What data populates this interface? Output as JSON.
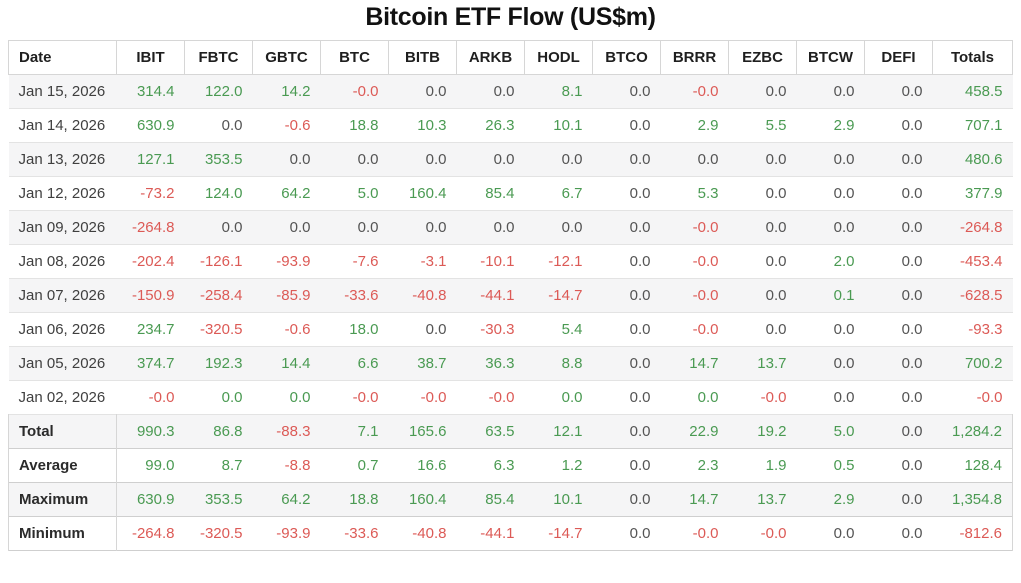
{
  "colors": {
    "positive": "#4a9a52",
    "negative": "#dc5a56",
    "zero": "#545454",
    "stripe": "#f5f5f6"
  },
  "chart_data": {
    "type": "table",
    "title": "Bitcoin ETF Flow (US$m)",
    "columns": [
      "Date",
      "IBIT",
      "FBTC",
      "GBTC",
      "BTC",
      "BITB",
      "ARKB",
      "HODL",
      "BTCO",
      "BRRR",
      "EZBC",
      "BTCW",
      "DEFI",
      "Totals"
    ],
    "rows": [
      {
        "label": "Jan 15, 2026",
        "values": [
          "314.4",
          "122.0",
          "14.2",
          "-0.0",
          "0.0",
          "0.0",
          "8.1",
          "0.0",
          "-0.0",
          "0.0",
          "0.0",
          "0.0",
          "458.5"
        ],
        "colors": [
          "pos",
          "pos",
          "pos",
          "neg",
          "zero",
          "zero",
          "pos",
          "zero",
          "neg",
          "zero",
          "zero",
          "zero",
          "pos"
        ]
      },
      {
        "label": "Jan 14, 2026",
        "values": [
          "630.9",
          "0.0",
          "-0.6",
          "18.8",
          "10.3",
          "26.3",
          "10.1",
          "0.0",
          "2.9",
          "5.5",
          "2.9",
          "0.0",
          "707.1"
        ],
        "colors": [
          "pos",
          "zero",
          "neg",
          "pos",
          "pos",
          "pos",
          "pos",
          "zero",
          "pos",
          "pos",
          "pos",
          "zero",
          "pos"
        ]
      },
      {
        "label": "Jan 13, 2026",
        "values": [
          "127.1",
          "353.5",
          "0.0",
          "0.0",
          "0.0",
          "0.0",
          "0.0",
          "0.0",
          "0.0",
          "0.0",
          "0.0",
          "0.0",
          "480.6"
        ],
        "colors": [
          "pos",
          "pos",
          "zero",
          "zero",
          "zero",
          "zero",
          "zero",
          "zero",
          "zero",
          "zero",
          "zero",
          "zero",
          "pos"
        ]
      },
      {
        "label": "Jan 12, 2026",
        "values": [
          "-73.2",
          "124.0",
          "64.2",
          "5.0",
          "160.4",
          "85.4",
          "6.7",
          "0.0",
          "5.3",
          "0.0",
          "0.0",
          "0.0",
          "377.9"
        ],
        "colors": [
          "neg",
          "pos",
          "pos",
          "pos",
          "pos",
          "pos",
          "pos",
          "zero",
          "pos",
          "zero",
          "zero",
          "zero",
          "pos"
        ]
      },
      {
        "label": "Jan 09, 2026",
        "values": [
          "-264.8",
          "0.0",
          "0.0",
          "0.0",
          "0.0",
          "0.0",
          "0.0",
          "0.0",
          "-0.0",
          "0.0",
          "0.0",
          "0.0",
          "-264.8"
        ],
        "colors": [
          "neg",
          "zero",
          "zero",
          "zero",
          "zero",
          "zero",
          "zero",
          "zero",
          "neg",
          "zero",
          "zero",
          "zero",
          "neg"
        ]
      },
      {
        "label": "Jan 08, 2026",
        "values": [
          "-202.4",
          "-126.1",
          "-93.9",
          "-7.6",
          "-3.1",
          "-10.1",
          "-12.1",
          "0.0",
          "-0.0",
          "0.0",
          "2.0",
          "0.0",
          "-453.4"
        ],
        "colors": [
          "neg",
          "neg",
          "neg",
          "neg",
          "neg",
          "neg",
          "neg",
          "zero",
          "neg",
          "zero",
          "pos",
          "zero",
          "neg"
        ]
      },
      {
        "label": "Jan 07, 2026",
        "values": [
          "-150.9",
          "-258.4",
          "-85.9",
          "-33.6",
          "-40.8",
          "-44.1",
          "-14.7",
          "0.0",
          "-0.0",
          "0.0",
          "0.1",
          "0.0",
          "-628.5"
        ],
        "colors": [
          "neg",
          "neg",
          "neg",
          "neg",
          "neg",
          "neg",
          "neg",
          "zero",
          "neg",
          "zero",
          "pos",
          "zero",
          "neg"
        ]
      },
      {
        "label": "Jan 06, 2026",
        "values": [
          "234.7",
          "-320.5",
          "-0.6",
          "18.0",
          "0.0",
          "-30.3",
          "5.4",
          "0.0",
          "-0.0",
          "0.0",
          "0.0",
          "0.0",
          "-93.3"
        ],
        "colors": [
          "pos",
          "neg",
          "neg",
          "pos",
          "zero",
          "neg",
          "pos",
          "zero",
          "neg",
          "zero",
          "zero",
          "zero",
          "neg"
        ]
      },
      {
        "label": "Jan 05, 2026",
        "values": [
          "374.7",
          "192.3",
          "14.4",
          "6.6",
          "38.7",
          "36.3",
          "8.8",
          "0.0",
          "14.7",
          "13.7",
          "0.0",
          "0.0",
          "700.2"
        ],
        "colors": [
          "pos",
          "pos",
          "pos",
          "pos",
          "pos",
          "pos",
          "pos",
          "zero",
          "pos",
          "pos",
          "zero",
          "zero",
          "pos"
        ]
      },
      {
        "label": "Jan 02, 2026",
        "values": [
          "-0.0",
          "0.0",
          "0.0",
          "-0.0",
          "-0.0",
          "-0.0",
          "0.0",
          "0.0",
          "0.0",
          "-0.0",
          "0.0",
          "0.0",
          "-0.0"
        ],
        "colors": [
          "neg",
          "pos",
          "pos",
          "neg",
          "neg",
          "neg",
          "pos",
          "zero",
          "pos",
          "neg",
          "zero",
          "zero",
          "neg"
        ]
      }
    ],
    "summary_rows": [
      {
        "label": "Total",
        "values": [
          "990.3",
          "86.8",
          "-88.3",
          "7.1",
          "165.6",
          "63.5",
          "12.1",
          "0.0",
          "22.9",
          "19.2",
          "5.0",
          "0.0",
          "1,284.2"
        ],
        "colors": [
          "pos",
          "pos",
          "neg",
          "pos",
          "pos",
          "pos",
          "pos",
          "zero",
          "pos",
          "pos",
          "pos",
          "zero",
          "pos"
        ]
      },
      {
        "label": "Average",
        "values": [
          "99.0",
          "8.7",
          "-8.8",
          "0.7",
          "16.6",
          "6.3",
          "1.2",
          "0.0",
          "2.3",
          "1.9",
          "0.5",
          "0.0",
          "128.4"
        ],
        "colors": [
          "pos",
          "pos",
          "neg",
          "pos",
          "pos",
          "pos",
          "pos",
          "zero",
          "pos",
          "pos",
          "pos",
          "zero",
          "pos"
        ]
      },
      {
        "label": "Maximum",
        "values": [
          "630.9",
          "353.5",
          "64.2",
          "18.8",
          "160.4",
          "85.4",
          "10.1",
          "0.0",
          "14.7",
          "13.7",
          "2.9",
          "0.0",
          "1,354.8"
        ],
        "colors": [
          "pos",
          "pos",
          "pos",
          "pos",
          "pos",
          "pos",
          "pos",
          "zero",
          "pos",
          "pos",
          "pos",
          "zero",
          "pos"
        ]
      },
      {
        "label": "Minimum",
        "values": [
          "-264.8",
          "-320.5",
          "-93.9",
          "-33.6",
          "-40.8",
          "-44.1",
          "-14.7",
          "0.0",
          "-0.0",
          "-0.0",
          "0.0",
          "0.0",
          "-812.6"
        ],
        "colors": [
          "neg",
          "neg",
          "neg",
          "neg",
          "neg",
          "neg",
          "neg",
          "zero",
          "neg",
          "neg",
          "zero",
          "zero",
          "neg"
        ]
      }
    ]
  }
}
